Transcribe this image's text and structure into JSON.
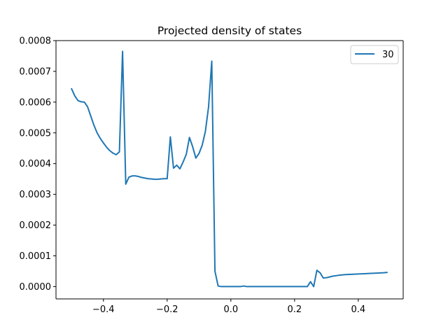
{
  "chart_data": {
    "type": "line",
    "title": "Projected density of states",
    "xlabel": "",
    "ylabel": "",
    "xlim": [
      -0.549,
      0.541
    ],
    "ylim": [
      -4e-05,
      0.0008
    ],
    "x_ticks": [
      -0.4,
      -0.2,
      0.0,
      0.2,
      0.4
    ],
    "x_tick_labels": [
      "−0.4",
      "−0.2",
      "0.0",
      "0.2",
      "0.4"
    ],
    "y_ticks": [
      0.0,
      0.0001,
      0.0002,
      0.0003,
      0.0004,
      0.0005,
      0.0006,
      0.0007,
      0.0008
    ],
    "y_tick_labels": [
      "0.0000",
      "0.0001",
      "0.0002",
      "0.0003",
      "0.0004",
      "0.0005",
      "0.0006",
      "0.0007",
      "0.0008"
    ],
    "grid": false,
    "legend_position": "top-right",
    "series": [
      {
        "name": "30",
        "color": "#1f77b4",
        "x": [
          -0.5,
          -0.49,
          -0.48,
          -0.47,
          -0.46,
          -0.45,
          -0.44,
          -0.43,
          -0.42,
          -0.41,
          -0.4,
          -0.39,
          -0.38,
          -0.37,
          -0.36,
          -0.35,
          -0.34,
          -0.33,
          -0.32,
          -0.31,
          -0.3,
          -0.29,
          -0.28,
          -0.27,
          -0.26,
          -0.25,
          -0.24,
          -0.23,
          -0.22,
          -0.21,
          -0.2,
          -0.19,
          -0.18,
          -0.17,
          -0.16,
          -0.15,
          -0.14,
          -0.13,
          -0.12,
          -0.11,
          -0.1,
          -0.09,
          -0.08,
          -0.07,
          -0.06,
          -0.05,
          -0.04,
          -0.03,
          -0.02,
          -0.01,
          0.0,
          0.01,
          0.02,
          0.03,
          0.04,
          0.05,
          0.06,
          0.07,
          0.08,
          0.09,
          0.1,
          0.11,
          0.12,
          0.13,
          0.14,
          0.15,
          0.16,
          0.17,
          0.18,
          0.19,
          0.2,
          0.21,
          0.22,
          0.23,
          0.24,
          0.25,
          0.26,
          0.27,
          0.28,
          0.29,
          0.3,
          0.32,
          0.34,
          0.36,
          0.38,
          0.4,
          0.42,
          0.44,
          0.46,
          0.48,
          0.49
        ],
        "y": [
          0.000643,
          0.00062,
          0.000605,
          0.000601,
          0.0006,
          0.000585,
          0.000555,
          0.000525,
          0.0005,
          0.000482,
          0.000467,
          0.000453,
          0.000442,
          0.000434,
          0.000429,
          0.000438,
          0.000765,
          0.000333,
          0.000356,
          0.00036,
          0.00036,
          0.000358,
          0.000355,
          0.000353,
          0.000351,
          0.00035,
          0.000349,
          0.000349,
          0.00035,
          0.000351,
          0.000351,
          0.000487,
          0.000385,
          0.000395,
          0.000383,
          0.000405,
          0.00043,
          0.000485,
          0.000455,
          0.000418,
          0.000433,
          0.00046,
          0.000505,
          0.000585,
          0.000733,
          5e-05,
          2e-06,
          0.0,
          0.0,
          0.0,
          0.0,
          0.0,
          0.0,
          0.0,
          2e-06,
          0.0,
          0.0,
          0.0,
          0.0,
          0.0,
          0.0,
          0.0,
          0.0,
          0.0,
          0.0,
          0.0,
          0.0,
          0.0,
          0.0,
          0.0,
          0.0,
          0.0,
          0.0,
          0.0,
          0.0,
          1.6e-05,
          0.0,
          5.3e-05,
          4.5e-05,
          2.8e-05,
          2.9e-05,
          3.4e-05,
          3.7e-05,
          3.9e-05,
          4e-05,
          4.1e-05,
          4.2e-05,
          4.3e-05,
          4.4e-05,
          4.5e-05,
          4.6e-05
        ]
      }
    ]
  }
}
